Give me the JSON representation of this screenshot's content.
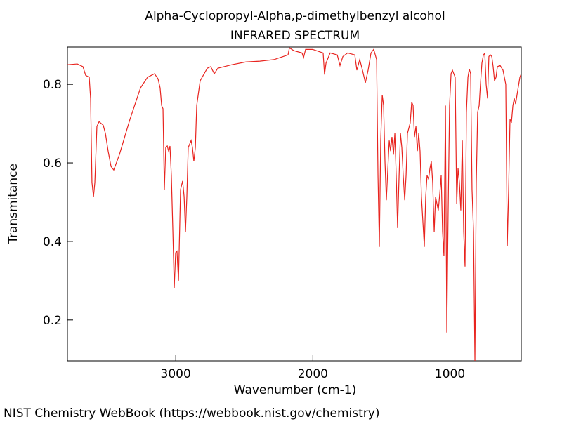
{
  "chart_data": {
    "type": "line",
    "title": "Alpha-Cyclopropyl-Alpha,p-dimethylbenzyl alcohol",
    "subtitle": "INFRARED SPECTRUM",
    "x_label": "Wavenumber (cm-1)",
    "y_label": "Transmitance",
    "xlim": [
      3790,
      480
    ],
    "ylim": [
      0.096,
      0.895
    ],
    "xticks": [
      3000,
      2000,
      1000
    ],
    "yticks": [
      0.2,
      0.4,
      0.6,
      0.8
    ],
    "color": "#e8241f",
    "x": [
      3790,
      3718,
      3677,
      3657,
      3631,
      3621,
      3611,
      3600,
      3590,
      3575,
      3559,
      3529,
      3513,
      3493,
      3472,
      3452,
      3411,
      3334,
      3257,
      3206,
      3155,
      3129,
      3114,
      3103,
      3093,
      3083,
      3073,
      3062,
      3052,
      3042,
      3032,
      3021,
      3011,
      3001,
      2991,
      2980,
      2965,
      2950,
      2939,
      2929,
      2919,
      2909,
      2888,
      2878,
      2868,
      2857,
      2847,
      2822,
      2770,
      2745,
      2719,
      2693,
      2591,
      2489,
      2386,
      2284,
      2181,
      2171,
      2140,
      2079,
      2068,
      2053,
      2002,
      1925,
      1915,
      1904,
      1874,
      1822,
      1802,
      1781,
      1746,
      1694,
      1679,
      1658,
      1638,
      1617,
      1597,
      1576,
      1556,
      1535,
      1525,
      1515,
      1505,
      1494,
      1484,
      1474,
      1464,
      1453,
      1443,
      1433,
      1423,
      1412,
      1402,
      1392,
      1382,
      1371,
      1361,
      1351,
      1341,
      1330,
      1320,
      1310,
      1290,
      1279,
      1269,
      1259,
      1248,
      1238,
      1228,
      1218,
      1208,
      1187,
      1177,
      1167,
      1156,
      1146,
      1136,
      1126,
      1115,
      1105,
      1095,
      1085,
      1074,
      1064,
      1054,
      1044,
      1033,
      1023,
      1013,
      1003,
      992,
      982,
      962,
      951,
      941,
      931,
      921,
      910,
      900,
      890,
      880,
      869,
      859,
      849,
      839,
      828,
      818,
      808,
      798,
      787,
      777,
      767,
      756,
      746,
      736,
      726,
      716,
      705,
      695,
      685,
      675,
      664,
      654,
      634,
      613,
      603,
      593,
      582,
      572,
      562,
      552,
      541,
      531,
      521,
      511,
      490,
      480
    ],
    "values": [
      0.85,
      0.852,
      0.845,
      0.823,
      0.818,
      0.764,
      0.55,
      0.514,
      0.55,
      0.693,
      0.705,
      0.696,
      0.675,
      0.63,
      0.591,
      0.582,
      0.621,
      0.711,
      0.791,
      0.818,
      0.827,
      0.814,
      0.791,
      0.746,
      0.738,
      0.532,
      0.639,
      0.643,
      0.63,
      0.643,
      0.568,
      0.425,
      0.282,
      0.371,
      0.375,
      0.3,
      0.532,
      0.554,
      0.514,
      0.425,
      0.514,
      0.639,
      0.657,
      0.639,
      0.604,
      0.639,
      0.746,
      0.809,
      0.841,
      0.845,
      0.827,
      0.841,
      0.85,
      0.857,
      0.859,
      0.863,
      0.875,
      0.893,
      0.886,
      0.88,
      0.868,
      0.889,
      0.889,
      0.88,
      0.825,
      0.854,
      0.88,
      0.875,
      0.848,
      0.871,
      0.88,
      0.875,
      0.836,
      0.863,
      0.836,
      0.804,
      0.836,
      0.88,
      0.889,
      0.863,
      0.568,
      0.386,
      0.657,
      0.773,
      0.746,
      0.604,
      0.505,
      0.586,
      0.657,
      0.63,
      0.666,
      0.621,
      0.675,
      0.568,
      0.434,
      0.568,
      0.675,
      0.639,
      0.568,
      0.505,
      0.568,
      0.675,
      0.702,
      0.755,
      0.746,
      0.666,
      0.693,
      0.63,
      0.675,
      0.63,
      0.514,
      0.386,
      0.514,
      0.568,
      0.559,
      0.586,
      0.604,
      0.55,
      0.425,
      0.514,
      0.496,
      0.479,
      0.523,
      0.568,
      0.425,
      0.363,
      0.746,
      0.168,
      0.479,
      0.746,
      0.827,
      0.836,
      0.818,
      0.496,
      0.586,
      0.55,
      0.479,
      0.657,
      0.425,
      0.336,
      0.729,
      0.818,
      0.839,
      0.827,
      0.532,
      0.425,
      0.096,
      0.55,
      0.729,
      0.746,
      0.804,
      0.854,
      0.875,
      0.879,
      0.8,
      0.764,
      0.871,
      0.875,
      0.871,
      0.845,
      0.809,
      0.818,
      0.845,
      0.848,
      0.836,
      0.818,
      0.8,
      0.389,
      0.532,
      0.711,
      0.702,
      0.746,
      0.764,
      0.75,
      0.773,
      0.818,
      0.827
    ]
  },
  "footer": "NIST Chemistry WebBook (https://webbook.nist.gov/chemistry)"
}
